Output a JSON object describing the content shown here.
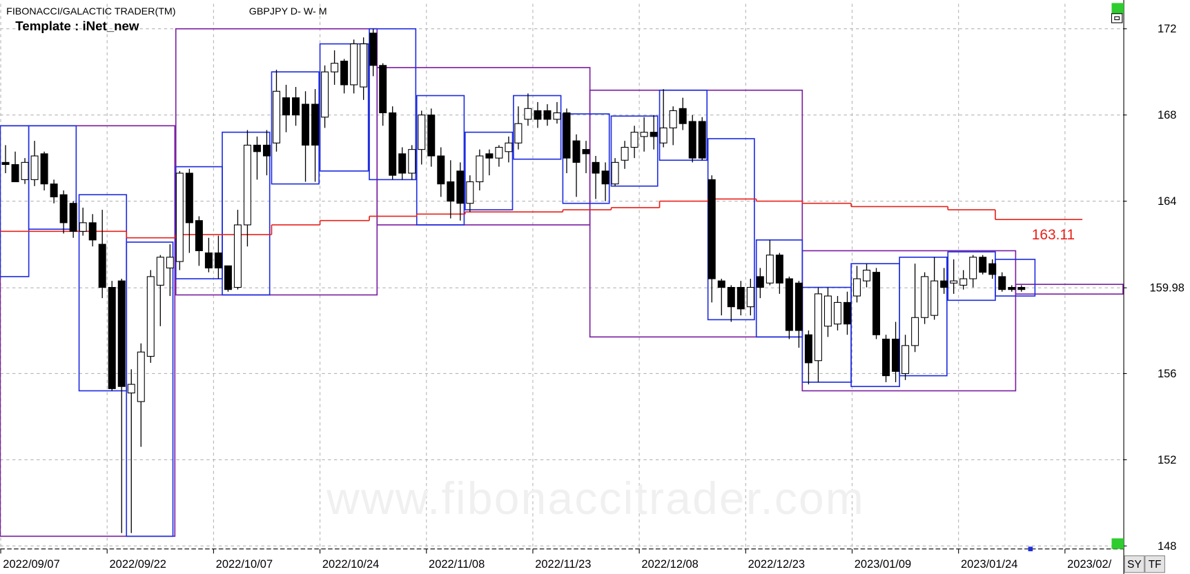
{
  "chart_data": {
    "type": "candlestick",
    "title": "FIBONACCI/GALACTIC TRADER(TM)",
    "subtitle": "GBPJPY D- W- M",
    "template": "Template : iNet_new",
    "watermark": "www.fibonaccitrader.com",
    "buttons": [
      "SY",
      "TF"
    ],
    "xlim": [
      -0.55,
      115.5
    ],
    "ylim": [
      147.86,
      173.16
    ],
    "yticks": [
      148,
      152,
      156,
      164,
      168,
      172
    ],
    "xticks": [
      {
        "value": -0.5,
        "label": "2022/09/07"
      },
      {
        "value": 10.5,
        "label": "2022/09/22"
      },
      {
        "value": 21.5,
        "label": "2022/10/07"
      },
      {
        "value": 32.5,
        "label": "2022/10/24"
      },
      {
        "value": 43.5,
        "label": "2022/11/08"
      },
      {
        "value": 54.5,
        "label": "2022/11/23"
      },
      {
        "value": 65.5,
        "label": "2022/12/08"
      },
      {
        "value": 76.5,
        "label": "2022/12/23"
      },
      {
        "value": 87.5,
        "label": "2023/01/09"
      },
      {
        "value": 98.5,
        "label": "2023/01/24"
      },
      {
        "value": 109.5,
        "label": "2023/02/"
      }
    ],
    "grid": true,
    "last_price": 159.98,
    "up_color": "#ffffff",
    "down_color": "#000000",
    "ohlc": [
      [
        165.8,
        166.6,
        165.3,
        165.7
      ],
      [
        165.7,
        166.3,
        165.0,
        164.9
      ],
      [
        165.0,
        166.0,
        164.8,
        165.8
      ],
      [
        165.0,
        166.8,
        164.7,
        166.1
      ],
      [
        166.2,
        166.3,
        164.5,
        164.8
      ],
      [
        164.8,
        165.0,
        163.9,
        164.2
      ],
      [
        164.3,
        164.5,
        162.5,
        163.0
      ],
      [
        163.9,
        164.0,
        162.3,
        162.6
      ],
      [
        162.6,
        163.7,
        162.4,
        163.0
      ],
      [
        163.0,
        163.4,
        161.9,
        162.2
      ],
      [
        162.0,
        163.6,
        159.5,
        160.0
      ],
      [
        160.0,
        160.3,
        155.2,
        155.3
      ],
      [
        160.3,
        160.4,
        148.6,
        155.4
      ],
      [
        155.1,
        156.2,
        148.6,
        155.5
      ],
      [
        154.7,
        157.4,
        152.6,
        157.0
      ],
      [
        156.8,
        160.8,
        156.5,
        160.5
      ],
      [
        160.1,
        161.5,
        158.2,
        161.4
      ],
      [
        160.9,
        162.0,
        159.6,
        161.4
      ],
      [
        161.2,
        165.4,
        160.8,
        165.3
      ],
      [
        165.3,
        165.5,
        161.6,
        163.0
      ],
      [
        163.1,
        163.3,
        161.0,
        161.7
      ],
      [
        161.6,
        162.3,
        160.7,
        160.9
      ],
      [
        161.6,
        162.4,
        160.4,
        160.9
      ],
      [
        161.0,
        161.0,
        159.8,
        159.9
      ],
      [
        160.0,
        163.6,
        159.9,
        162.9
      ],
      [
        162.9,
        167.3,
        161.9,
        166.6
      ],
      [
        166.6,
        167.0,
        165.0,
        166.3
      ],
      [
        166.6,
        167.3,
        165.2,
        166.1
      ],
      [
        166.7,
        170.1,
        166.3,
        169.1
      ],
      [
        168.8,
        169.4,
        167.2,
        168.0
      ],
      [
        168.8,
        169.3,
        167.5,
        168.0
      ],
      [
        168.5,
        169.1,
        164.9,
        166.6
      ],
      [
        168.5,
        169.2,
        164.9,
        166.6
      ],
      [
        167.9,
        170.3,
        167.4,
        170.0
      ],
      [
        170.0,
        171.0,
        169.4,
        170.4
      ],
      [
        170.5,
        170.6,
        169.0,
        169.4
      ],
      [
        169.4,
        171.5,
        169.0,
        171.3
      ],
      [
        169.3,
        171.6,
        168.7,
        171.3
      ],
      [
        171.8,
        172.0,
        169.8,
        170.3
      ],
      [
        170.3,
        170.4,
        167.5,
        168.1
      ],
      [
        168.1,
        168.4,
        165.0,
        165.2
      ],
      [
        166.2,
        166.5,
        165.0,
        165.3
      ],
      [
        165.3,
        166.6,
        165.0,
        166.4
      ],
      [
        166.4,
        168.2,
        165.7,
        168.0
      ],
      [
        168.0,
        168.3,
        165.6,
        166.1
      ],
      [
        166.1,
        166.5,
        164.2,
        164.8
      ],
      [
        164.9,
        165.9,
        163.2,
        164.0
      ],
      [
        165.4,
        165.8,
        163.1,
        163.9
      ],
      [
        163.9,
        165.2,
        163.5,
        164.9
      ],
      [
        164.9,
        166.4,
        164.5,
        166.1
      ],
      [
        166.2,
        166.4,
        165.2,
        166.0
      ],
      [
        166.0,
        166.6,
        165.6,
        166.5
      ],
      [
        166.3,
        167.0,
        165.8,
        166.7
      ],
      [
        166.7,
        168.4,
        166.4,
        167.6
      ],
      [
        167.8,
        169.0,
        167.5,
        168.3
      ],
      [
        168.2,
        168.6,
        167.4,
        167.8
      ],
      [
        168.2,
        168.5,
        167.5,
        167.8
      ],
      [
        167.8,
        168.6,
        167.6,
        168.1
      ],
      [
        168.1,
        168.3,
        165.3,
        166.0
      ],
      [
        166.8,
        167.1,
        164.2,
        165.8
      ],
      [
        166.4,
        166.8,
        165.3,
        166.2
      ],
      [
        165.8,
        166.1,
        164.1,
        165.3
      ],
      [
        165.4,
        165.8,
        164.0,
        164.8
      ],
      [
        164.8,
        166.0,
        164.7,
        165.8
      ],
      [
        165.9,
        166.8,
        165.5,
        166.5
      ],
      [
        166.5,
        167.5,
        166.0,
        167.2
      ],
      [
        167.0,
        167.9,
        166.3,
        167.2
      ],
      [
        167.2,
        168.0,
        166.4,
        167.0
      ],
      [
        166.7,
        169.2,
        166.5,
        167.4
      ],
      [
        167.4,
        168.4,
        166.6,
        168.2
      ],
      [
        168.3,
        168.8,
        167.3,
        167.6
      ],
      [
        167.7,
        168.0,
        165.8,
        166.0
      ],
      [
        167.7,
        167.9,
        165.9,
        166.0
      ],
      [
        165.0,
        165.2,
        159.3,
        160.4
      ],
      [
        160.3,
        160.4,
        158.7,
        160.0
      ],
      [
        160.0,
        160.1,
        158.4,
        159.1
      ],
      [
        160.0,
        160.3,
        158.7,
        159.0
      ],
      [
        159.1,
        160.4,
        158.7,
        160.0
      ],
      [
        160.5,
        160.9,
        159.5,
        160.0
      ],
      [
        160.2,
        162.2,
        160.1,
        161.5
      ],
      [
        161.5,
        161.6,
        159.7,
        160.2
      ],
      [
        160.4,
        160.5,
        157.6,
        158.0
      ],
      [
        160.2,
        160.3,
        157.2,
        158.0
      ],
      [
        157.8,
        158.0,
        155.5,
        156.5
      ],
      [
        156.6,
        160.0,
        155.6,
        159.7
      ],
      [
        158.2,
        160.0,
        157.7,
        159.6
      ],
      [
        158.3,
        159.6,
        158.0,
        159.3
      ],
      [
        159.3,
        159.8,
        157.8,
        158.3
      ],
      [
        159.6,
        161.0,
        159.3,
        160.4
      ],
      [
        160.3,
        161.1,
        160.0,
        160.8
      ],
      [
        160.7,
        160.9,
        157.6,
        157.8
      ],
      [
        157.6,
        157.8,
        155.6,
        155.9
      ],
      [
        157.6,
        158.4,
        155.6,
        156.1
      ],
      [
        156.0,
        157.8,
        155.7,
        157.3
      ],
      [
        157.3,
        161.1,
        157.0,
        158.6
      ],
      [
        158.6,
        160.7,
        158.3,
        160.5
      ],
      [
        158.7,
        161.4,
        158.5,
        160.3
      ],
      [
        160.3,
        160.9,
        159.7,
        160.0
      ],
      [
        160.2,
        161.3,
        159.7,
        160.3
      ],
      [
        160.1,
        160.8,
        159.9,
        160.4
      ],
      [
        160.4,
        161.5,
        160.0,
        161.4
      ],
      [
        161.4,
        161.5,
        160.6,
        160.7
      ],
      [
        161.1,
        161.3,
        160.4,
        160.6
      ],
      [
        160.5,
        160.7,
        159.8,
        159.9
      ],
      [
        160.0,
        160.1,
        159.8,
        159.9
      ],
      [
        160.0,
        160.1,
        159.8,
        159.9
      ]
    ],
    "monthly_boxes": {
      "color": "#7b1fa2",
      "boxes": [
        [
          -0.55,
          17.5,
          167.5,
          148.45
        ],
        [
          17.6,
          38.4,
          172.0,
          159.65
        ],
        [
          38.4,
          60.4,
          170.2,
          162.9
        ],
        [
          60.4,
          82.35,
          169.15,
          157.7
        ],
        [
          82.35,
          104.4,
          161.7,
          155.2
        ],
        [
          104.4,
          115.5,
          160.14,
          159.69
        ]
      ]
    },
    "weekly_boxes": {
      "color": "#1f2ee0",
      "boxes": [
        [
          -0.55,
          2.4,
          167.5,
          160.5
        ],
        [
          2.4,
          7.3,
          167.5,
          162.7
        ],
        [
          7.6,
          12.5,
          164.3,
          155.2
        ],
        [
          12.5,
          17.3,
          162.1,
          148.45
        ],
        [
          17.6,
          22.4,
          165.6,
          160.4
        ],
        [
          22.4,
          27.3,
          167.2,
          159.65
        ],
        [
          27.5,
          32.4,
          170.0,
          164.8
        ],
        [
          32.5,
          37.5,
          171.3,
          165.4
        ],
        [
          37.6,
          42.4,
          172.0,
          165.0
        ],
        [
          42.5,
          47.4,
          168.9,
          162.9
        ],
        [
          47.5,
          52.4,
          167.2,
          163.6
        ],
        [
          52.5,
          57.4,
          168.9,
          165.95
        ],
        [
          57.6,
          62.4,
          168.05,
          163.9
        ],
        [
          62.6,
          67.4,
          167.95,
          164.7
        ],
        [
          67.6,
          72.5,
          169.15,
          165.9
        ],
        [
          72.6,
          77.4,
          166.9,
          158.5
        ],
        [
          77.6,
          82.35,
          162.2,
          157.7
        ],
        [
          82.35,
          87.4,
          160.0,
          155.6
        ],
        [
          87.4,
          92.4,
          161.1,
          155.4
        ],
        [
          92.4,
          97.3,
          161.4,
          155.9
        ],
        [
          97.4,
          102.3,
          161.65,
          159.4
        ],
        [
          102.3,
          106.4,
          161.3,
          159.6
        ]
      ]
    },
    "average": {
      "color": "#e8201a",
      "edges": [
        -0.55,
        12.5,
        17.6,
        27.5,
        32.5,
        37.6,
        42.5,
        47.5,
        57.6,
        62.6,
        67.6,
        72.6,
        77.6,
        82.35,
        87.4,
        97.4,
        102.3,
        111.3
      ],
      "values": [
        162.6,
        162.3,
        162.45,
        162.9,
        163.1,
        163.3,
        163.4,
        163.5,
        163.6,
        163.7,
        164.0,
        164.1,
        164.0,
        163.9,
        163.75,
        163.6,
        163.15
      ],
      "last_value": 163.11
    }
  }
}
